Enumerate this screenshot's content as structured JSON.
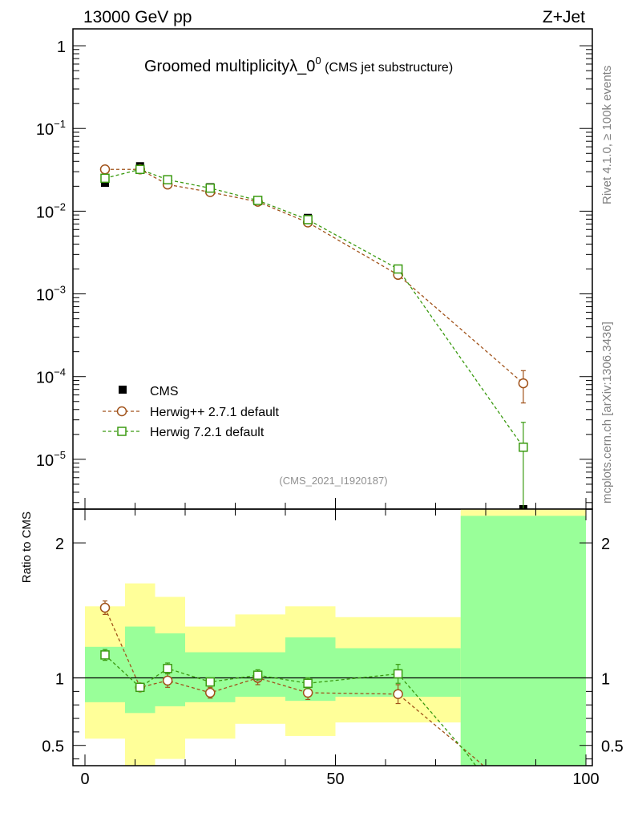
{
  "header": {
    "left": "13000 GeV pp",
    "right": "Z+Jet"
  },
  "side_labels": {
    "top": "Rivet 4.1.0, ≥ 100k events",
    "bottom": "mcplots.cern.ch [arXiv:1306.3436]"
  },
  "chart_data": [
    {
      "type": "line",
      "title_main": "Groomed multiplicityλ_0",
      "title_sup": "0",
      "title_sub": " (CMS jet substructure)",
      "watermark": "(CMS_2021_I1920187)",
      "yscale": "log",
      "ylim": [
        2.5e-06,
        1.6
      ],
      "xlim": [
        -3,
        100
      ],
      "ytick_labels": [
        {
          "v": 1,
          "base": "1",
          "exp": ""
        },
        {
          "v": 0.1,
          "base": "10",
          "exp": "−1"
        },
        {
          "v": 0.01,
          "base": "10",
          "exp": "−2"
        },
        {
          "v": 0.001,
          "base": "10",
          "exp": "−3"
        },
        {
          "v": 0.0001,
          "base": "10",
          "exp": "−4"
        },
        {
          "v": 1e-05,
          "base": "10",
          "exp": "−5"
        }
      ],
      "legend": [
        {
          "name": "CMS",
          "marker": "filled-square",
          "color": "#000000"
        },
        {
          "name": "Herwig++ 2.7.1 default",
          "marker": "open-circle",
          "color": "#a0521a"
        },
        {
          "name": "Herwig 7.2.1 default",
          "marker": "open-square",
          "color": "#3a9a10"
        }
      ],
      "series": [
        {
          "name": "CMS",
          "x": [
            4,
            11,
            16.5,
            25,
            34.5,
            44.5,
            62.5,
            87.5
          ],
          "y": [
            0.022,
            0.035,
            0.022,
            0.0195,
            0.0132,
            0.0083,
            0.00195,
            2.5e-06
          ],
          "yerr": [
            0.002,
            0.002,
            0.001,
            0.001,
            0.0007,
            0.0005,
            0.00015,
            0
          ]
        },
        {
          "name": "Herwig++ 2.7.1 default",
          "x": [
            4,
            11,
            16.5,
            25,
            34.5,
            44.5,
            62.5,
            87.5
          ],
          "y": [
            0.032,
            0.032,
            0.021,
            0.017,
            0.013,
            0.0073,
            0.0017,
            8.3e-05
          ],
          "yerr": [
            0.001,
            0.001,
            0.0008,
            0.0007,
            0.0006,
            0.0004,
            0.00013,
            3.5e-05
          ]
        },
        {
          "name": "Herwig 7.2.1 default",
          "x": [
            4,
            11,
            16.5,
            25,
            34.5,
            44.5,
            62.5,
            87.5
          ],
          "y": [
            0.025,
            0.032,
            0.024,
            0.019,
            0.0135,
            0.0079,
            0.002,
            1.4e-05
          ],
          "yerr": [
            0.001,
            0.001,
            0.0008,
            0.0007,
            0.0006,
            0.0004,
            0.00015,
            1.4e-05
          ]
        }
      ]
    },
    {
      "type": "line",
      "ylabel": "Ratio to CMS",
      "ylim": [
        0.35,
        2.25
      ],
      "xlim": [
        -3,
        100
      ],
      "xticks": [
        0,
        50,
        100
      ],
      "yticks": [
        0.5,
        1,
        2
      ],
      "ytick_labels": [
        "0.5",
        "1",
        "2"
      ],
      "bands": [
        {
          "x0": 0,
          "x1": 8,
          "inner": [
            0.82,
            1.23
          ],
          "outer": [
            0.55,
            1.53
          ]
        },
        {
          "x0": 8,
          "x1": 14,
          "inner": [
            0.74,
            1.38
          ],
          "outer": [
            0.25,
            1.7
          ]
        },
        {
          "x0": 14,
          "x1": 20,
          "inner": [
            0.79,
            1.33
          ],
          "outer": [
            0.4,
            1.6
          ]
        },
        {
          "x0": 20,
          "x1": 30,
          "inner": [
            0.82,
            1.19
          ],
          "outer": [
            0.55,
            1.38
          ]
        },
        {
          "x0": 30,
          "x1": 40,
          "inner": [
            0.86,
            1.19
          ],
          "outer": [
            0.66,
            1.47
          ]
        },
        {
          "x0": 40,
          "x1": 50,
          "inner": [
            0.83,
            1.3
          ],
          "outer": [
            0.57,
            1.53
          ]
        },
        {
          "x0": 50,
          "x1": 75,
          "inner": [
            0.86,
            1.22
          ],
          "outer": [
            0.67,
            1.45
          ]
        },
        {
          "x0": 75,
          "x1": 100,
          "inner": [
            0.0,
            2.2
          ],
          "outer": [
            0.0,
            2.3
          ]
        }
      ],
      "series": [
        {
          "name": "Herwig++ 2.7.1 default",
          "x": [
            4,
            11,
            16.5,
            25,
            34.5,
            44.5,
            62.5,
            78,
            79.5
          ],
          "y": [
            1.52,
            0.93,
            0.98,
            0.89,
            1.0,
            0.89,
            0.88,
            0.4,
            0.35
          ],
          "yerr": [
            0.05,
            0.03,
            0.05,
            0.04,
            0.05,
            0.05,
            0.07,
            0,
            0
          ],
          "markers": 7
        },
        {
          "name": "Herwig 7.2.1 default",
          "x": [
            4,
            11,
            16.5,
            25,
            34.5,
            44.5,
            62.5,
            76,
            78
          ],
          "y": [
            1.17,
            0.93,
            1.07,
            0.97,
            1.02,
            0.96,
            1.03,
            0.45,
            0.35
          ],
          "yerr": [
            0.04,
            0.03,
            0.04,
            0.03,
            0.04,
            0.04,
            0.07,
            0,
            0
          ],
          "markers": 7
        }
      ]
    }
  ]
}
